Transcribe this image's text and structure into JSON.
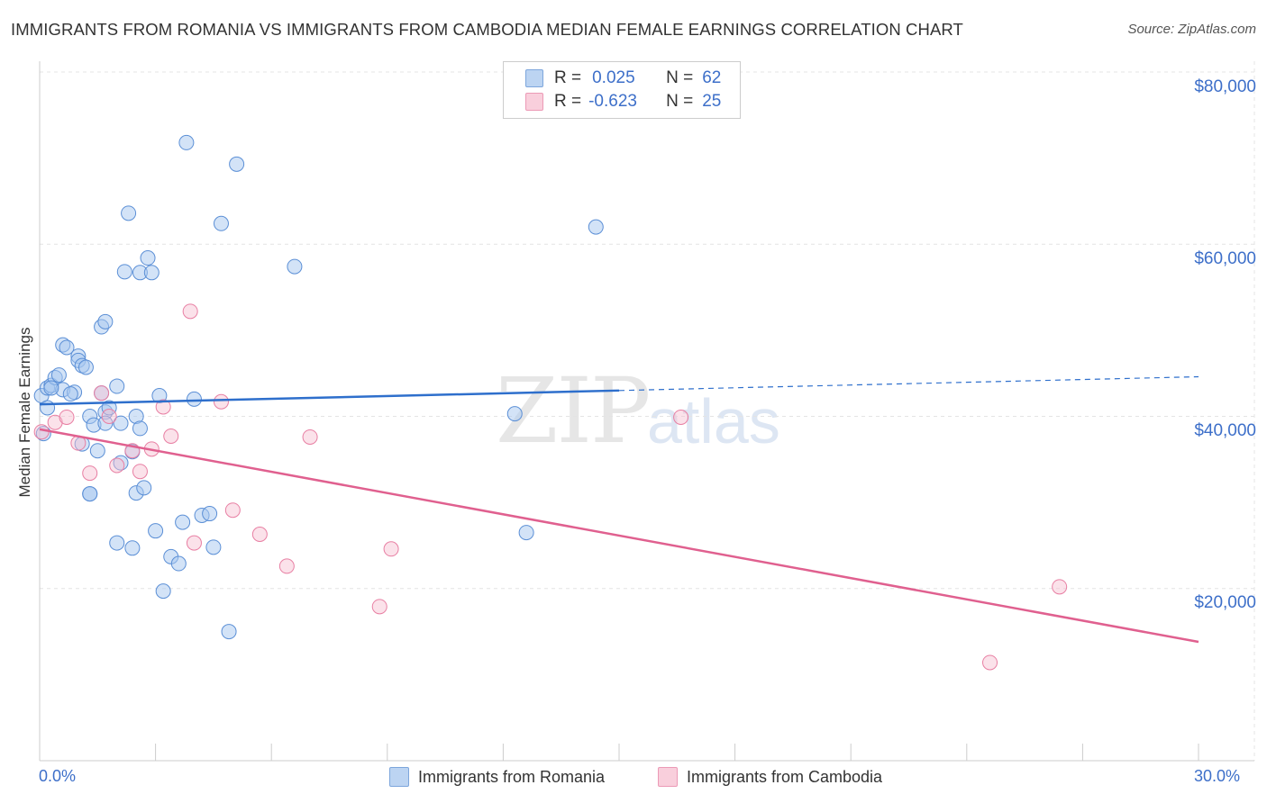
{
  "title": "IMMIGRANTS FROM ROMANIA VS IMMIGRANTS FROM CAMBODIA MEDIAN FEMALE EARNINGS CORRELATION CHART",
  "source": "Source: ZipAtlas.com",
  "watermark": {
    "zip": "ZIP",
    "atlas": "atlas"
  },
  "legend_top": {
    "rows": [
      {
        "r_label": "R =",
        "r_value": "0.025",
        "n_label": "N =",
        "n_value": "62"
      },
      {
        "r_label": "R =",
        "r_value": "-0.623",
        "n_label": "N =",
        "n_value": "25"
      }
    ]
  },
  "legend_bottom": {
    "series1": "Immigrants from Romania",
    "series2": "Immigrants from Cambodia"
  },
  "colors": {
    "romania_fill": "#a8c8f0",
    "romania_stroke": "#5b8fd6",
    "romania_line": "#2e6fcc",
    "cambodia_fill": "#f7bfd0",
    "cambodia_stroke": "#e87fa3",
    "cambodia_line": "#e0608f"
  },
  "chart_data": {
    "type": "scatter",
    "title": "IMMIGRANTS FROM ROMANIA VS IMMIGRANTS FROM CAMBODIA MEDIAN FEMALE EARNINGS CORRELATION CHART",
    "xlabel": "",
    "ylabel": "Median Female Earnings",
    "xlim": [
      0,
      30
    ],
    "ylim": [
      0,
      80000
    ],
    "x_tick_labels": [
      "0.0%",
      "30.0%"
    ],
    "y_ticks": [
      20000,
      40000,
      60000,
      80000
    ],
    "y_tick_labels": [
      "$20,000",
      "$40,000",
      "$60,000",
      "$80,000"
    ],
    "grid": true,
    "series": [
      {
        "name": "Immigrants from Romania",
        "R": 0.025,
        "N": 62,
        "trend": {
          "x0": 0,
          "y0": 41400,
          "x1": 15,
          "y1": 43000,
          "dashed_to_x": 30,
          "dashed_y": 44600
        },
        "points": [
          [
            0.05,
            42400
          ],
          [
            0.2,
            41000
          ],
          [
            0.2,
            43300
          ],
          [
            0.3,
            43600
          ],
          [
            0.4,
            44500
          ],
          [
            0.5,
            44800
          ],
          [
            0.6,
            43100
          ],
          [
            0.9,
            42800
          ],
          [
            0.6,
            48300
          ],
          [
            0.7,
            48000
          ],
          [
            1.0,
            47000
          ],
          [
            1.0,
            46500
          ],
          [
            1.1,
            45900
          ],
          [
            1.2,
            45700
          ],
          [
            0.8,
            42600
          ],
          [
            1.1,
            36800
          ],
          [
            1.3,
            31000
          ],
          [
            1.3,
            40000
          ],
          [
            1.4,
            39000
          ],
          [
            1.5,
            36000
          ],
          [
            1.6,
            42700
          ],
          [
            1.7,
            40500
          ],
          [
            1.8,
            41000
          ],
          [
            1.7,
            39200
          ],
          [
            1.6,
            50400
          ],
          [
            1.7,
            51000
          ],
          [
            2.1,
            39200
          ],
          [
            2.0,
            43500
          ],
          [
            2.1,
            34600
          ],
          [
            2.2,
            56800
          ],
          [
            2.3,
            63600
          ],
          [
            2.4,
            35900
          ],
          [
            2.4,
            24700
          ],
          [
            2.5,
            31100
          ],
          [
            2.5,
            40000
          ],
          [
            2.6,
            38600
          ],
          [
            2.6,
            56700
          ],
          [
            2.7,
            31700
          ],
          [
            2.8,
            58400
          ],
          [
            2.9,
            56700
          ],
          [
            3.0,
            26700
          ],
          [
            3.1,
            42400
          ],
          [
            3.2,
            19700
          ],
          [
            3.4,
            23700
          ],
          [
            3.6,
            22900
          ],
          [
            3.7,
            27700
          ],
          [
            3.8,
            71800
          ],
          [
            4.0,
            42000
          ],
          [
            4.2,
            28500
          ],
          [
            4.4,
            28700
          ],
          [
            4.5,
            24800
          ],
          [
            4.7,
            62400
          ],
          [
            4.9,
            15000
          ],
          [
            5.1,
            69300
          ],
          [
            6.6,
            57400
          ],
          [
            12.3,
            40300
          ],
          [
            12.6,
            26500
          ],
          [
            14.4,
            62000
          ],
          [
            2.0,
            25300
          ],
          [
            1.3,
            31000
          ],
          [
            0.3,
            43300
          ],
          [
            0.1,
            38000
          ]
        ]
      },
      {
        "name": "Immigrants from Cambodia",
        "R": -0.623,
        "N": 25,
        "trend": {
          "x0": 0,
          "y0": 38500,
          "x1": 30,
          "y1": 13800
        },
        "points": [
          [
            0.05,
            38200
          ],
          [
            0.4,
            39300
          ],
          [
            0.7,
            39900
          ],
          [
            1.0,
            36900
          ],
          [
            1.3,
            33400
          ],
          [
            1.6,
            42700
          ],
          [
            1.8,
            40000
          ],
          [
            2.0,
            34300
          ],
          [
            2.4,
            36000
          ],
          [
            2.6,
            33600
          ],
          [
            2.9,
            36200
          ],
          [
            3.2,
            41100
          ],
          [
            3.4,
            37700
          ],
          [
            3.9,
            52200
          ],
          [
            4.0,
            25300
          ],
          [
            4.7,
            41700
          ],
          [
            5.0,
            29100
          ],
          [
            5.7,
            26300
          ],
          [
            6.4,
            22600
          ],
          [
            7.0,
            37600
          ],
          [
            8.8,
            17900
          ],
          [
            9.1,
            24600
          ],
          [
            16.6,
            39900
          ],
          [
            24.6,
            11400
          ],
          [
            26.4,
            20200
          ]
        ]
      }
    ]
  }
}
